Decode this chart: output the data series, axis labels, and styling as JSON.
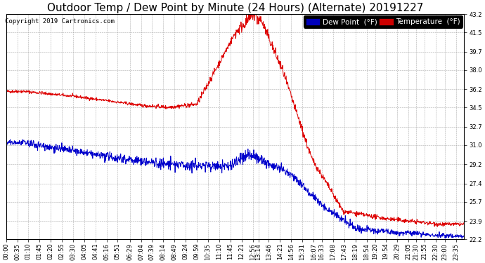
{
  "title": "Outdoor Temp / Dew Point by Minute (24 Hours) (Alternate) 20191227",
  "copyright": "Copyright 2019 Cartronics.com",
  "ylim": [
    22.2,
    43.2
  ],
  "yticks": [
    22.2,
    23.9,
    25.7,
    27.4,
    29.2,
    31.0,
    32.7,
    34.5,
    36.2,
    38.0,
    39.7,
    41.5,
    43.2
  ],
  "temp_color": "#dd0000",
  "dew_color": "#0000cc",
  "bg_color": "#ffffff",
  "plot_bg_color": "#ffffff",
  "grid_color": "#999999",
  "legend_temp_bg": "#cc0000",
  "legend_dew_bg": "#0000bb",
  "xtick_labels": [
    "00:00",
    "00:35",
    "01:10",
    "01:45",
    "02:20",
    "02:55",
    "03:30",
    "04:05",
    "04:41",
    "05:16",
    "05:51",
    "06:29",
    "07:04",
    "07:39",
    "08:14",
    "08:49",
    "09:24",
    "09:59",
    "10:35",
    "11:10",
    "11:45",
    "12:21",
    "12:56",
    "13:14",
    "13:46",
    "14:21",
    "14:56",
    "15:31",
    "16:07",
    "16:33",
    "17:08",
    "17:43",
    "18:19",
    "18:54",
    "19:20",
    "19:54",
    "20:29",
    "21:05",
    "21:30",
    "21:55",
    "22:30",
    "23:00",
    "23:35"
  ],
  "title_fontsize": 11,
  "copyright_fontsize": 6.5,
  "tick_fontsize": 6,
  "legend_fontsize": 7.5,
  "figwidth": 6.9,
  "figheight": 3.75,
  "dpi": 100
}
